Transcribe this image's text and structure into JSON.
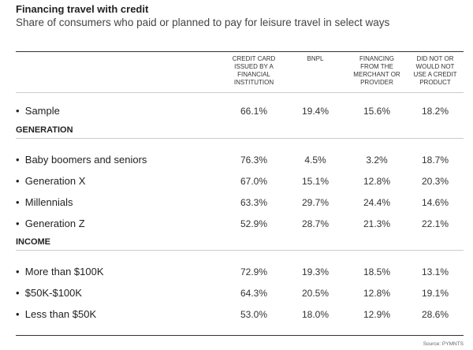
{
  "header": {
    "title": "Financing travel with credit",
    "subtitle": "Share of consumers who paid or planned to pay for leisure travel in select ways"
  },
  "table": {
    "columns": [
      "CREDIT CARD ISSUED BY A FINANCIAL INSTITUTION",
      "BNPL",
      "FINANCING FROM THE MERCHANT OR PROVIDER",
      "DID NOT OR WOULD NOT USE A CREDIT PRODUCT"
    ],
    "rows": [
      {
        "label": "Sample",
        "values": [
          "66.1%",
          "19.4%",
          "15.6%",
          "18.2%"
        ]
      }
    ],
    "sections": [
      {
        "title": "GENERATION",
        "rows": [
          {
            "label": "Baby boomers and seniors",
            "values": [
              "76.3%",
              "4.5%",
              "3.2%",
              "18.7%"
            ]
          },
          {
            "label": "Generation X",
            "values": [
              "67.0%",
              "15.1%",
              "12.8%",
              "20.3%"
            ]
          },
          {
            "label": "Millennials",
            "values": [
              "63.3%",
              "29.7%",
              "24.4%",
              "14.6%"
            ]
          },
          {
            "label": "Generation Z",
            "values": [
              "52.9%",
              "28.7%",
              "21.3%",
              "22.1%"
            ]
          }
        ]
      },
      {
        "title": "INCOME",
        "rows": [
          {
            "label": "More than $100K",
            "values": [
              "72.9%",
              "19.3%",
              "18.5%",
              "13.1%"
            ]
          },
          {
            "label": "$50K-$100K",
            "values": [
              "64.3%",
              "20.5%",
              "12.8%",
              "19.1%"
            ]
          },
          {
            "label": "Less than $50K",
            "values": [
              "53.0%",
              "18.0%",
              "12.9%",
              "28.6%"
            ]
          }
        ]
      }
    ]
  },
  "source": "Source: PYMNTS"
}
